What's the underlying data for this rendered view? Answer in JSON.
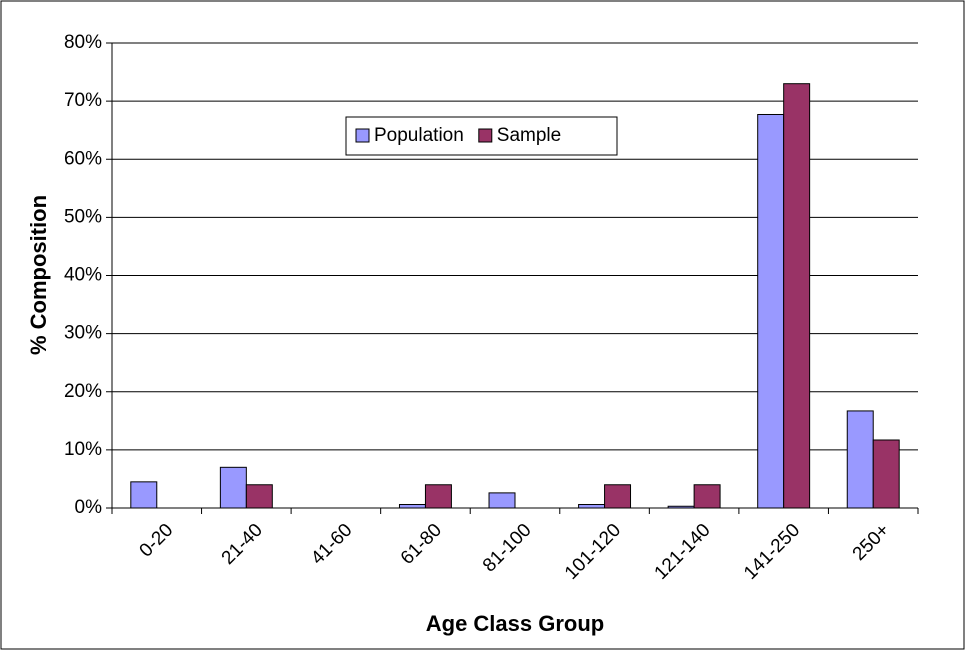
{
  "chart_data": {
    "type": "bar",
    "x_label": "Age Class Group",
    "y_label": "% Composition",
    "categories": [
      "0-20",
      "21-40",
      "41-60",
      "61-80",
      "81-100",
      "101-120",
      "121-140",
      "141-250",
      "250+"
    ],
    "series": [
      {
        "name": "Population",
        "color": "#9999ff",
        "values": [
          4.5,
          7,
          0,
          0.6,
          2.6,
          0.6,
          0.3,
          67.7,
          16.7
        ]
      },
      {
        "name": "Sample",
        "color": "#993366",
        "values": [
          0,
          4,
          0,
          4,
          0,
          4,
          4,
          73,
          11.7
        ]
      }
    ],
    "ylim": [
      0,
      80
    ],
    "yticks": [
      {
        "value": 0,
        "label": "0%"
      },
      {
        "value": 10,
        "label": "10%"
      },
      {
        "value": 20,
        "label": "20%"
      },
      {
        "value": 30,
        "label": "30%"
      },
      {
        "value": 40,
        "label": "40%"
      },
      {
        "value": 50,
        "label": "50%"
      },
      {
        "value": 60,
        "label": "60%"
      },
      {
        "value": 70,
        "label": "70%"
      },
      {
        "value": 80,
        "label": "80%"
      }
    ],
    "grid": true
  }
}
